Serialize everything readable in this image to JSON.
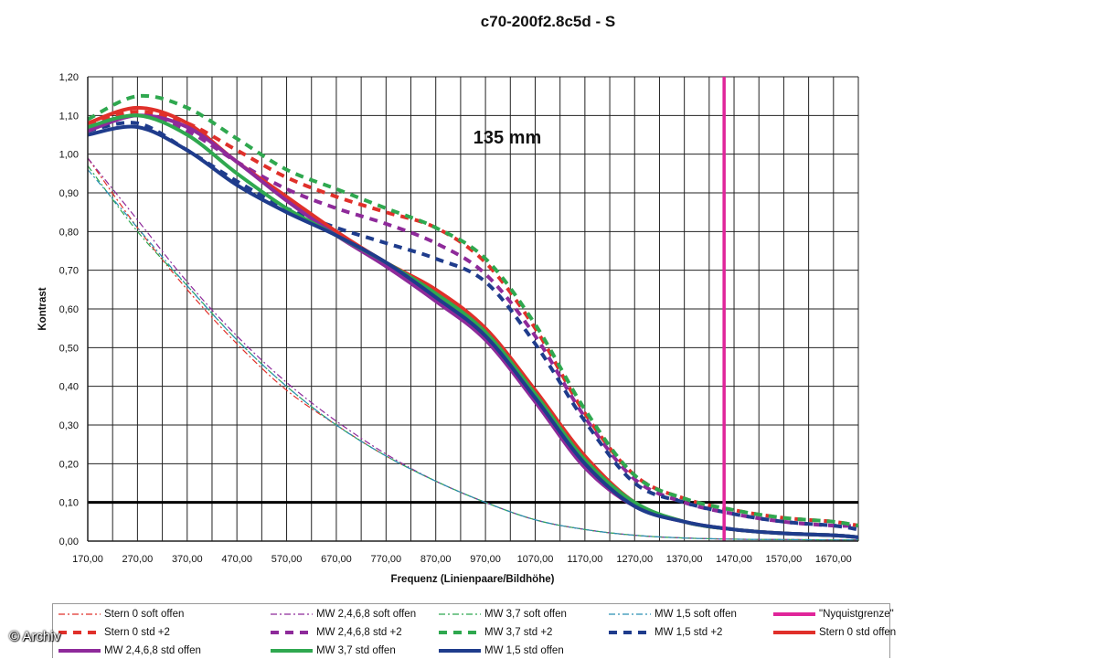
{
  "watermark": "© Archiv",
  "chart_data": {
    "type": "line",
    "title": "c70-200f2.8c5d - S",
    "annotation": "135 mm",
    "xlabel": "Frequenz (Linienpaare/Bildhöhe)",
    "ylabel": "Kontrast",
    "xlim": [
      170,
      1720
    ],
    "ylim": [
      0,
      1.2
    ],
    "xticks": [
      "170,00",
      "270,00",
      "370,00",
      "470,00",
      "570,00",
      "670,00",
      "770,00",
      "870,00",
      "970,00",
      "1070,00",
      "1170,00",
      "1270,00",
      "1370,00",
      "1470,00",
      "1570,00",
      "1670,00"
    ],
    "yticks": [
      "0,00",
      "0,10",
      "0,20",
      "0,30",
      "0,40",
      "0,50",
      "0,60",
      "0,70",
      "0,80",
      "0,90",
      "1,00",
      "1,10",
      "1,20"
    ],
    "grid": true,
    "legend_position": "bottom",
    "reference_line_y": 0.1,
    "series": [
      {
        "name": "Stern 0 soft offen",
        "color": "#e0302a",
        "style": "dashdot",
        "x": [
          170,
          270,
          370,
          470,
          570,
          670,
          770,
          870,
          970,
          1070,
          1170,
          1270,
          1370,
          1470,
          1570,
          1670,
          1720
        ],
        "y": [
          0.99,
          0.81,
          0.65,
          0.51,
          0.39,
          0.3,
          0.22,
          0.155,
          0.1,
          0.055,
          0.03,
          0.015,
          0.008,
          0.005,
          0.004,
          0.003,
          0.003
        ]
      },
      {
        "name": "MW 2,4,6,8 soft offen",
        "color": "#8e2a9a",
        "style": "dashdot",
        "x": [
          170,
          270,
          370,
          470,
          570,
          670,
          770,
          870,
          970,
          1070,
          1170,
          1270,
          1370,
          1470,
          1570,
          1670,
          1720
        ],
        "y": [
          0.99,
          0.83,
          0.67,
          0.53,
          0.41,
          0.31,
          0.225,
          0.155,
          0.1,
          0.055,
          0.03,
          0.015,
          0.008,
          0.005,
          0.004,
          0.003,
          0.003
        ]
      },
      {
        "name": "MW 3,7 soft offen",
        "color": "#2fa84f",
        "style": "dashdot",
        "x": [
          170,
          270,
          370,
          470,
          570,
          670,
          770,
          870,
          970,
          1070,
          1170,
          1270,
          1370,
          1470,
          1570,
          1670,
          1720
        ],
        "y": [
          0.97,
          0.8,
          0.66,
          0.52,
          0.4,
          0.3,
          0.22,
          0.155,
          0.1,
          0.055,
          0.03,
          0.015,
          0.008,
          0.005,
          0.004,
          0.003,
          0.003
        ]
      },
      {
        "name": "MW 1,5 soft offen",
        "color": "#2a8fb5",
        "style": "dashdot",
        "x": [
          170,
          270,
          370,
          470,
          570,
          670,
          770,
          870,
          970,
          1070,
          1170,
          1270,
          1370,
          1470,
          1570,
          1670,
          1720
        ],
        "y": [
          0.96,
          0.81,
          0.66,
          0.52,
          0.4,
          0.3,
          0.22,
          0.155,
          0.1,
          0.055,
          0.03,
          0.015,
          0.008,
          0.005,
          0.004,
          0.003,
          0.003
        ]
      },
      {
        "name": "\"Nyquistgrenze\"",
        "color": "#e0259a",
        "style": "vline",
        "x": [
          1450,
          1450
        ],
        "y": [
          0,
          1.2
        ]
      },
      {
        "name": "Stern 0 std +2",
        "color": "#e0302a",
        "style": "dash",
        "x": [
          170,
          270,
          370,
          470,
          570,
          670,
          770,
          870,
          970,
          1070,
          1170,
          1270,
          1370,
          1470,
          1570,
          1670,
          1720
        ],
        "y": [
          1.08,
          1.11,
          1.08,
          1.01,
          0.94,
          0.89,
          0.85,
          0.81,
          0.72,
          0.55,
          0.33,
          0.17,
          0.11,
          0.08,
          0.06,
          0.05,
          0.04
        ]
      },
      {
        "name": "MW 2,4,6,8 std +2",
        "color": "#8e2a9a",
        "style": "dash",
        "x": [
          170,
          270,
          370,
          470,
          570,
          670,
          770,
          870,
          970,
          1070,
          1170,
          1270,
          1370,
          1470,
          1570,
          1670,
          1720
        ],
        "y": [
          1.07,
          1.1,
          1.06,
          0.98,
          0.91,
          0.86,
          0.82,
          0.77,
          0.69,
          0.53,
          0.32,
          0.16,
          0.1,
          0.07,
          0.05,
          0.04,
          0.04
        ]
      },
      {
        "name": "MW 3,7 std +2",
        "color": "#2fa84f",
        "style": "dash",
        "x": [
          170,
          270,
          370,
          470,
          570,
          670,
          770,
          870,
          970,
          1070,
          1170,
          1270,
          1370,
          1470,
          1570,
          1670,
          1720
        ],
        "y": [
          1.09,
          1.15,
          1.12,
          1.04,
          0.96,
          0.91,
          0.86,
          0.81,
          0.73,
          0.56,
          0.34,
          0.17,
          0.11,
          0.08,
          0.06,
          0.05,
          0.04
        ]
      },
      {
        "name": "MW 1,5 std +2",
        "color": "#1f3c8c",
        "style": "dash",
        "x": [
          170,
          270,
          370,
          470,
          570,
          670,
          770,
          870,
          970,
          1070,
          1170,
          1270,
          1370,
          1470,
          1570,
          1670,
          1720
        ],
        "y": [
          1.06,
          1.08,
          1.01,
          0.93,
          0.86,
          0.81,
          0.77,
          0.73,
          0.67,
          0.51,
          0.31,
          0.15,
          0.1,
          0.07,
          0.05,
          0.04,
          0.03
        ]
      },
      {
        "name": "Stern 0 std offen",
        "color": "#e0302a",
        "style": "solid",
        "x": [
          170,
          270,
          370,
          470,
          570,
          670,
          770,
          870,
          970,
          1070,
          1170,
          1270,
          1370,
          1470,
          1570,
          1670,
          1720
        ],
        "y": [
          1.08,
          1.12,
          1.08,
          0.98,
          0.89,
          0.8,
          0.72,
          0.65,
          0.55,
          0.39,
          0.22,
          0.1,
          0.05,
          0.03,
          0.02,
          0.015,
          0.01
        ]
      },
      {
        "name": "MW 2,4,6,8 std offen",
        "color": "#8e2a9a",
        "style": "solid",
        "x": [
          170,
          270,
          370,
          470,
          570,
          670,
          770,
          870,
          970,
          1070,
          1170,
          1270,
          1370,
          1470,
          1570,
          1670,
          1720
        ],
        "y": [
          1.06,
          1.1,
          1.07,
          0.98,
          0.88,
          0.79,
          0.71,
          0.62,
          0.52,
          0.36,
          0.19,
          0.09,
          0.05,
          0.03,
          0.02,
          0.015,
          0.01
        ]
      },
      {
        "name": "MW 3,7 std offen",
        "color": "#2fa84f",
        "style": "solid",
        "x": [
          170,
          270,
          370,
          470,
          570,
          670,
          770,
          870,
          970,
          1070,
          1170,
          1270,
          1370,
          1470,
          1570,
          1670,
          1720
        ],
        "y": [
          1.07,
          1.1,
          1.05,
          0.95,
          0.86,
          0.79,
          0.72,
          0.64,
          0.54,
          0.38,
          0.21,
          0.1,
          0.05,
          0.03,
          0.02,
          0.015,
          0.01
        ]
      },
      {
        "name": "MW 1,5 std offen",
        "color": "#1f3c8c",
        "style": "solid",
        "x": [
          170,
          270,
          370,
          470,
          570,
          670,
          770,
          870,
          970,
          1070,
          1170,
          1270,
          1370,
          1470,
          1570,
          1670,
          1720
        ],
        "y": [
          1.05,
          1.07,
          1.01,
          0.92,
          0.85,
          0.79,
          0.72,
          0.63,
          0.53,
          0.37,
          0.2,
          0.09,
          0.05,
          0.03,
          0.02,
          0.015,
          0.01
        ]
      }
    ]
  }
}
